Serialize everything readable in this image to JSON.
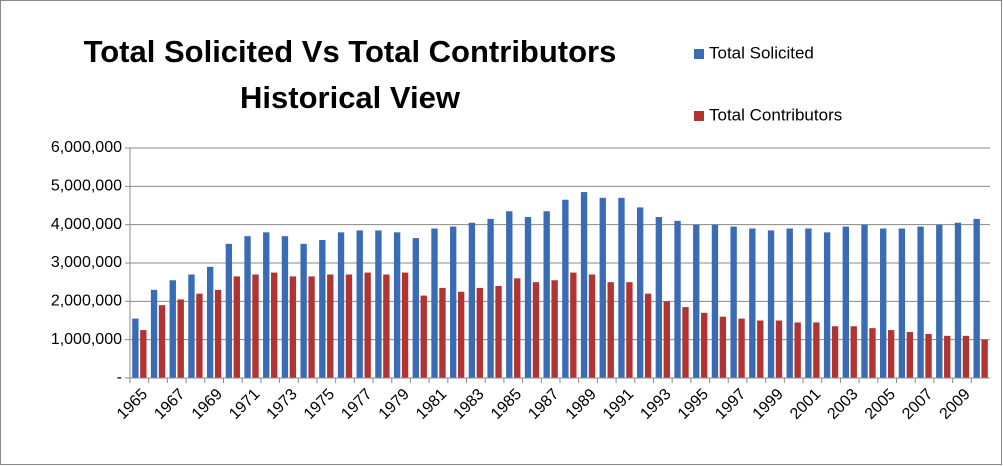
{
  "chart_data": {
    "type": "bar",
    "title": [
      "Total Solicited Vs Total Contributors",
      "Historical View"
    ],
    "categories": [
      "1965",
      null,
      "1967",
      null,
      "1969",
      null,
      "1971",
      null,
      "1973",
      null,
      "1975",
      null,
      "1977",
      null,
      "1979",
      null,
      "1981",
      null,
      "1983",
      null,
      "1985",
      null,
      "1987",
      null,
      "1989",
      null,
      "1991",
      null,
      "1993",
      null,
      "1995",
      null,
      "1997",
      null,
      "1999",
      null,
      "2001",
      null,
      "2003",
      null,
      "2005",
      null,
      "2007",
      null,
      "2009",
      null
    ],
    "series": [
      {
        "name": "Total Solicited",
        "color": "#3a6bb5",
        "values": [
          1550000,
          2300000,
          2550000,
          2700000,
          2900000,
          3500000,
          3700000,
          3800000,
          3700000,
          3500000,
          3600000,
          3800000,
          3850000,
          3850000,
          3800000,
          3650000,
          3900000,
          3950000,
          4050000,
          4150000,
          4350000,
          4200000,
          4350000,
          4650000,
          4850000,
          4700000,
          4700000,
          4450000,
          4200000,
          4100000,
          4000000,
          4000000,
          3950000,
          3900000,
          3850000,
          3900000,
          3900000,
          3800000,
          3950000,
          4000000,
          3900000,
          3900000,
          3950000,
          4000000,
          4050000,
          4150000
        ]
      },
      {
        "name": "Total Contributors",
        "color": "#b23432",
        "values": [
          1250000,
          1900000,
          2050000,
          2200000,
          2300000,
          2650000,
          2700000,
          2750000,
          2650000,
          2650000,
          2700000,
          2700000,
          2750000,
          2700000,
          2750000,
          2150000,
          2350000,
          2250000,
          2350000,
          2400000,
          2600000,
          2500000,
          2550000,
          2750000,
          2700000,
          2500000,
          2500000,
          2200000,
          2000000,
          1850000,
          1700000,
          1600000,
          1550000,
          1500000,
          1500000,
          1450000,
          1450000,
          1350000,
          1350000,
          1300000,
          1250000,
          1200000,
          1150000,
          1100000,
          1100000,
          1000000
        ]
      }
    ],
    "ylim": [
      0,
      6000000
    ],
    "yticks": [
      {
        "value": 0,
        "label": "-"
      },
      {
        "value": 1000000,
        "label": "1,000,000"
      },
      {
        "value": 2000000,
        "label": "2,000,000"
      },
      {
        "value": 3000000,
        "label": "3,000,000"
      },
      {
        "value": 4000000,
        "label": "4,000,000"
      },
      {
        "value": 5000000,
        "label": "5,000,000"
      },
      {
        "value": 6000000,
        "label": "6,000,000"
      }
    ],
    "grid": true
  }
}
